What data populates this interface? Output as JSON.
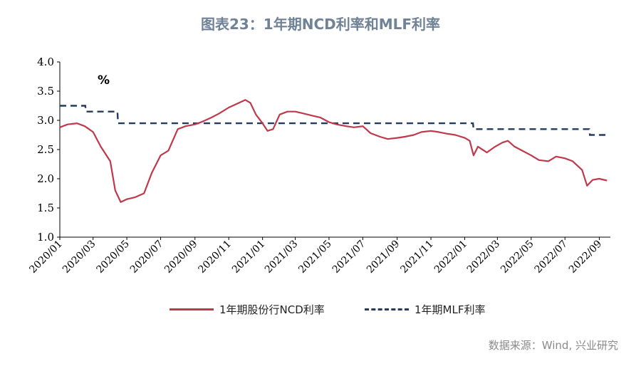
{
  "title": "图表23：1年期NCD利率和MLF利率",
  "source": "数据来源：Wind, 兴业研究",
  "colors": {
    "ncd": "#c0394b",
    "mlf": "#243a5e",
    "title": "#6f8296"
  },
  "chart_data": {
    "type": "line",
    "unit_label": "%",
    "ylim": [
      1.0,
      4.0
    ],
    "yticks": [
      "4.0",
      "3.5",
      "3.0",
      "2.5",
      "2.0",
      "1.5",
      "1.0"
    ],
    "xticks": [
      "2020/01",
      "2020/03",
      "2020/05",
      "2020/07",
      "2020/09",
      "2020/11",
      "2021/01",
      "2021/03",
      "2021/05",
      "2021/07",
      "2021/09",
      "2021/11",
      "2022/01",
      "2022/03",
      "2022/05",
      "2022/07",
      "2022/09"
    ],
    "grid": false,
    "legend_position": "bottom",
    "series": [
      {
        "name": "1年期股份行NCD利率",
        "style": "solid",
        "points": [
          [
            "2020-01-01",
            2.88
          ],
          [
            "2020-01-15",
            2.93
          ],
          [
            "2020-02-01",
            2.95
          ],
          [
            "2020-02-15",
            2.9
          ],
          [
            "2020-03-01",
            2.8
          ],
          [
            "2020-03-15",
            2.55
          ],
          [
            "2020-04-01",
            2.3
          ],
          [
            "2020-04-10",
            1.8
          ],
          [
            "2020-04-20",
            1.6
          ],
          [
            "2020-05-01",
            1.65
          ],
          [
            "2020-05-15",
            1.68
          ],
          [
            "2020-06-01",
            1.75
          ],
          [
            "2020-06-15",
            2.1
          ],
          [
            "2020-07-01",
            2.4
          ],
          [
            "2020-07-15",
            2.48
          ],
          [
            "2020-08-01",
            2.85
          ],
          [
            "2020-08-15",
            2.9
          ],
          [
            "2020-09-01",
            2.93
          ],
          [
            "2020-09-15",
            2.98
          ],
          [
            "2020-10-01",
            3.05
          ],
          [
            "2020-10-15",
            3.12
          ],
          [
            "2020-11-01",
            3.22
          ],
          [
            "2020-11-15",
            3.28
          ],
          [
            "2020-12-01",
            3.35
          ],
          [
            "2020-12-10",
            3.3
          ],
          [
            "2020-12-20",
            3.1
          ],
          [
            "2021-01-01",
            2.95
          ],
          [
            "2021-01-10",
            2.82
          ],
          [
            "2021-01-20",
            2.85
          ],
          [
            "2021-02-01",
            3.1
          ],
          [
            "2021-02-15",
            3.15
          ],
          [
            "2021-03-01",
            3.15
          ],
          [
            "2021-03-15",
            3.12
          ],
          [
            "2021-04-01",
            3.08
          ],
          [
            "2021-04-15",
            3.05
          ],
          [
            "2021-05-01",
            2.97
          ],
          [
            "2021-05-15",
            2.93
          ],
          [
            "2021-06-01",
            2.9
          ],
          [
            "2021-06-15",
            2.88
          ],
          [
            "2021-07-01",
            2.9
          ],
          [
            "2021-07-15",
            2.78
          ],
          [
            "2021-08-01",
            2.72
          ],
          [
            "2021-08-15",
            2.68
          ],
          [
            "2021-09-01",
            2.7
          ],
          [
            "2021-09-15",
            2.72
          ],
          [
            "2021-10-01",
            2.75
          ],
          [
            "2021-10-15",
            2.8
          ],
          [
            "2021-11-01",
            2.82
          ],
          [
            "2021-11-15",
            2.8
          ],
          [
            "2021-12-01",
            2.77
          ],
          [
            "2021-12-15",
            2.75
          ],
          [
            "2022-01-01",
            2.7
          ],
          [
            "2022-01-10",
            2.65
          ],
          [
            "2022-01-17",
            2.4
          ],
          [
            "2022-01-25",
            2.55
          ],
          [
            "2022-02-10",
            2.45
          ],
          [
            "2022-02-25",
            2.55
          ],
          [
            "2022-03-10",
            2.62
          ],
          [
            "2022-03-20",
            2.65
          ],
          [
            "2022-04-01",
            2.55
          ],
          [
            "2022-04-15",
            2.48
          ],
          [
            "2022-05-01",
            2.4
          ],
          [
            "2022-05-15",
            2.32
          ],
          [
            "2022-06-01",
            2.3
          ],
          [
            "2022-06-15",
            2.38
          ],
          [
            "2022-07-01",
            2.35
          ],
          [
            "2022-07-15",
            2.3
          ],
          [
            "2022-08-01",
            2.15
          ],
          [
            "2022-08-10",
            1.88
          ],
          [
            "2022-08-20",
            1.98
          ],
          [
            "2022-09-01",
            2.0
          ],
          [
            "2022-09-15",
            1.97
          ]
        ]
      },
      {
        "name": "1年期MLF利率",
        "style": "dashed",
        "points": [
          [
            "2020-01-01",
            3.25
          ],
          [
            "2020-02-16",
            3.25
          ],
          [
            "2020-02-17",
            3.15
          ],
          [
            "2020-04-14",
            3.15
          ],
          [
            "2020-04-15",
            2.95
          ],
          [
            "2022-01-16",
            2.95
          ],
          [
            "2022-01-17",
            2.85
          ],
          [
            "2022-08-14",
            2.85
          ],
          [
            "2022-08-15",
            2.75
          ],
          [
            "2022-09-15",
            2.75
          ]
        ]
      }
    ]
  }
}
